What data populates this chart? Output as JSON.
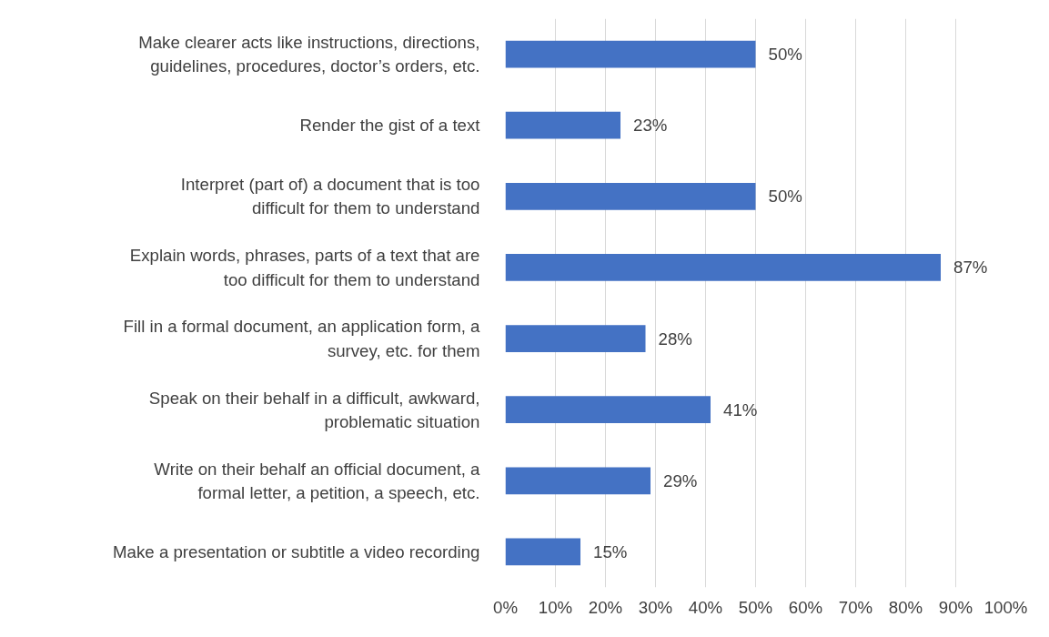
{
  "chart_data": {
    "type": "bar",
    "orientation": "horizontal",
    "categories": [
      "Make clearer acts like instructions, directions, guidelines, procedures, doctor’s orders, etc.",
      "Render the gist of a text",
      "Interpret (part of) a document that is too difficult for them to understand",
      "Explain words, phrases, parts of a text that are too difficult for them to understand",
      "Fill in a formal document, an application form, a survey, etc. for them",
      "Speak on their behalf in a difficult, awkward, problematic situation",
      "Write on their behalf an official document, a formal letter, a petition, a speech, etc.",
      "Make a presentation or subtitle a video recording"
    ],
    "values": [
      50,
      23,
      50,
      87,
      28,
      41,
      29,
      15
    ],
    "value_labels": [
      "50%",
      "23%",
      "50%",
      "87%",
      "28%",
      "41%",
      "29%",
      "15%"
    ],
    "color": "#4472c4",
    "xlim": [
      0,
      100
    ],
    "xticks": [
      {
        "value": 0,
        "label": "0%"
      },
      {
        "value": 10,
        "label": "10%"
      },
      {
        "value": 20,
        "label": "20%"
      },
      {
        "value": 30,
        "label": "30%"
      },
      {
        "value": 40,
        "label": "40%"
      },
      {
        "value": 50,
        "label": "50%"
      },
      {
        "value": 60,
        "label": "60%"
      },
      {
        "value": 70,
        "label": "70%"
      },
      {
        "value": 80,
        "label": "80%"
      },
      {
        "value": 90,
        "label": "90%"
      },
      {
        "value": 100,
        "label": "100%"
      }
    ],
    "grid": "x"
  }
}
